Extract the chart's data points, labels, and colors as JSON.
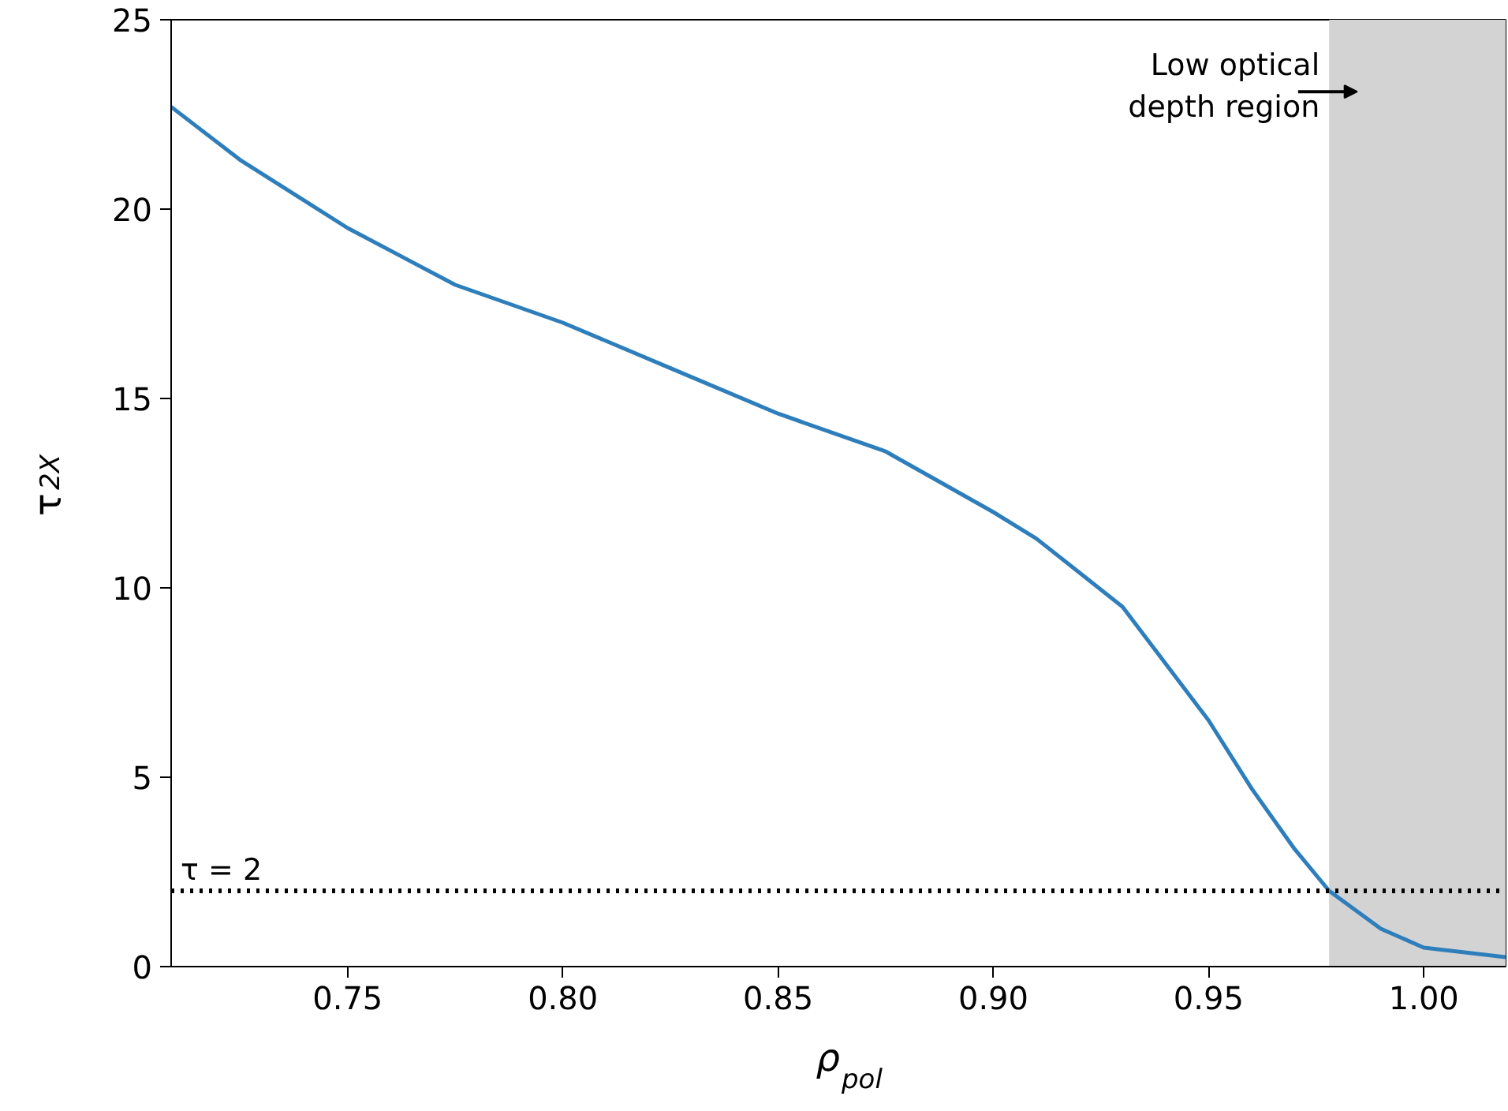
{
  "chart_data": {
    "type": "line",
    "xlabel": "ρ$_{pol}$",
    "ylabel": "τ$_{2X}$",
    "x": [
      0.709,
      0.725,
      0.75,
      0.775,
      0.8,
      0.825,
      0.85,
      0.875,
      0.9,
      0.91,
      0.92,
      0.93,
      0.94,
      0.95,
      0.96,
      0.97,
      0.978,
      0.99,
      1.0,
      1.019
    ],
    "series": [
      {
        "color": "#2e7ebc",
        "values": [
          22.7,
          21.3,
          19.5,
          18.0,
          17.0,
          15.8,
          14.6,
          13.6,
          12.0,
          11.3,
          10.4,
          9.5,
          8.0,
          6.5,
          4.7,
          3.1,
          2.0,
          1.0,
          0.5,
          0.25
        ]
      }
    ],
    "xlim": [
      0.709,
      1.019
    ],
    "ylim": [
      0,
      25
    ],
    "xticks": [
      {
        "value": 0.75,
        "label": "0.75"
      },
      {
        "value": 0.8,
        "label": "0.80"
      },
      {
        "value": 0.85,
        "label": "0.85"
      },
      {
        "value": 0.9,
        "label": "0.90"
      },
      {
        "value": 0.95,
        "label": "0.95"
      },
      {
        "value": 1.0,
        "label": "1.00"
      }
    ],
    "yticks": [
      0,
      5,
      10,
      15,
      20,
      25
    ],
    "ref_lines": [
      {
        "axis": "y",
        "value": 2,
        "label": "τ = 2",
        "color": "#000000",
        "line_style": "dotted"
      }
    ],
    "bands": [
      {
        "axis": "x",
        "from": 0.978,
        "to": 1.019,
        "color": "#d3d3d3"
      }
    ],
    "annotations": [
      "Low optical\ndepth region"
    ],
    "grid": false,
    "marker": "none",
    "line_style": "solid"
  }
}
